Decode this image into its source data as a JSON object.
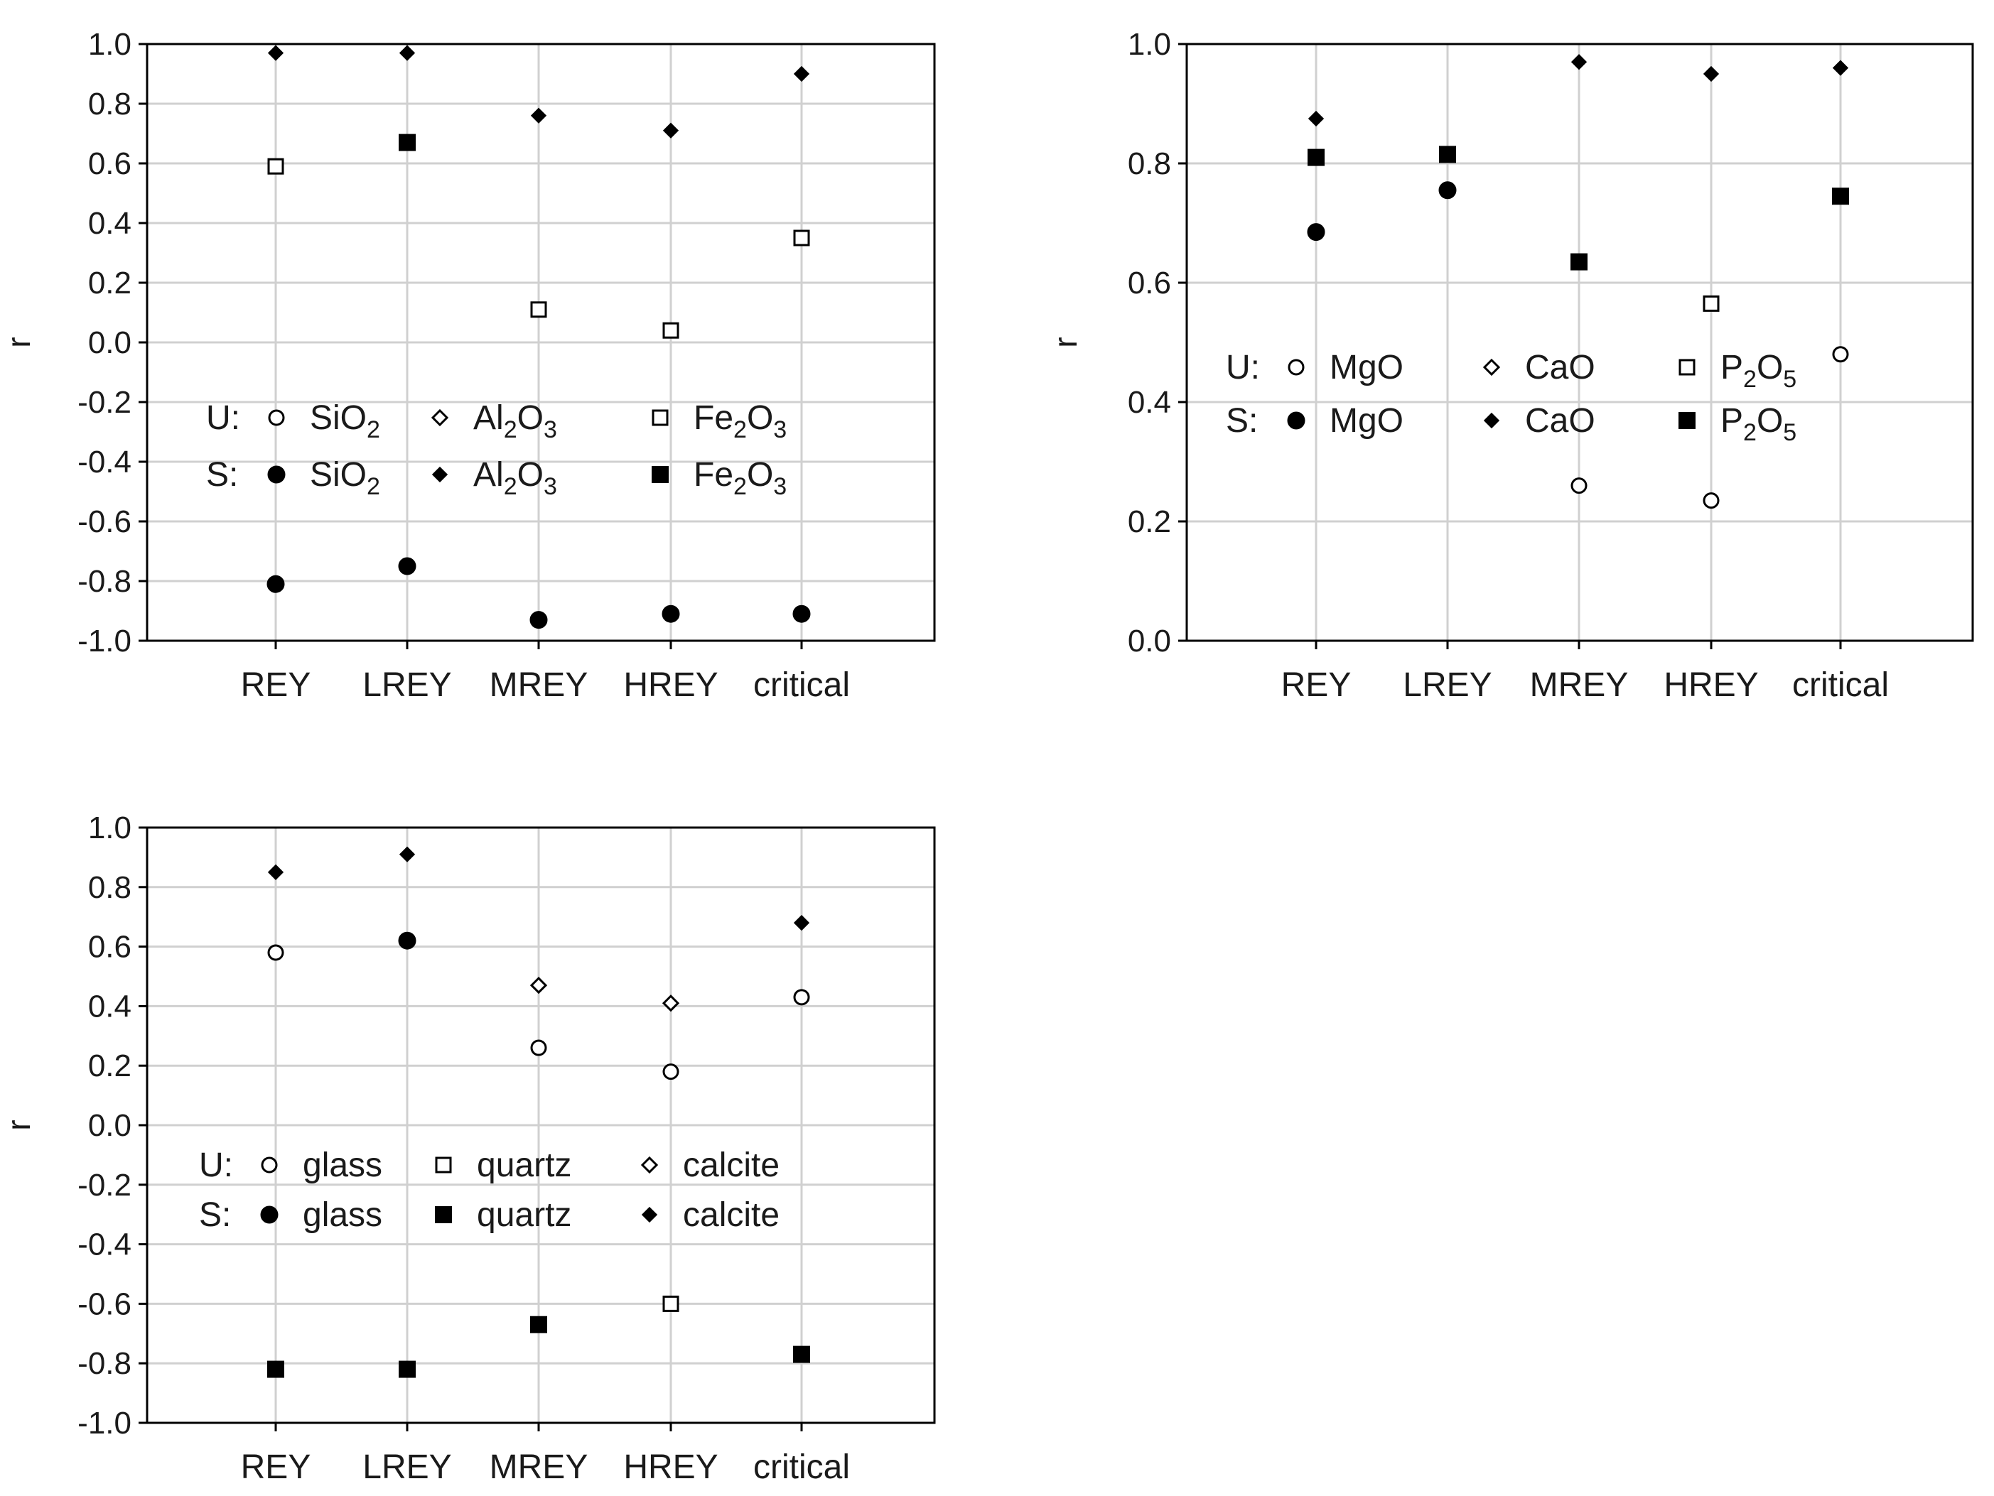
{
  "chart_data": [
    {
      "type": "scatter",
      "categories": [
        "REY",
        "LREY",
        "MREY",
        "HREY",
        "critical"
      ],
      "ylabel": "r",
      "ylim": [
        -1.0,
        1.0
      ],
      "yticks": [
        "1.0",
        "0.8",
        "0.6",
        "0.4",
        "0.2",
        "0.0",
        "-0.2",
        "-0.4",
        "-0.6",
        "-0.8",
        "-1.0"
      ],
      "ytick_values": [
        1.0,
        0.8,
        0.6,
        0.4,
        0.2,
        0.0,
        -0.2,
        -0.4,
        -0.6,
        -0.8,
        -1.0
      ],
      "grid": true,
      "legend": {
        "position": "center-left",
        "rows": [
          {
            "prefix": "U:",
            "items": [
              {
                "marker": "open-circle",
                "base": "SiO",
                "sub": "2",
                "tail": ""
              },
              {
                "marker": "open-diamond",
                "base": "Al",
                "sub": "2",
                "mid": "O",
                "sub2": "3"
              },
              {
                "marker": "open-square",
                "base": "Fe",
                "sub": "2",
                "mid": "O",
                "sub2": "3"
              }
            ]
          },
          {
            "prefix": "S:",
            "items": [
              {
                "marker": "filled-circle",
                "base": "SiO",
                "sub": "2",
                "tail": ""
              },
              {
                "marker": "filled-diamond",
                "base": "Al",
                "sub": "2",
                "mid": "O",
                "sub2": "3"
              },
              {
                "marker": "filled-square",
                "base": "Fe",
                "sub": "2",
                "mid": "O",
                "sub2": "3"
              }
            ]
          }
        ]
      },
      "points": [
        {
          "x": "REY",
          "y": 0.97,
          "marker": "filled-diamond"
        },
        {
          "x": "LREY",
          "y": 0.97,
          "marker": "filled-diamond"
        },
        {
          "x": "MREY",
          "y": 0.76,
          "marker": "filled-diamond"
        },
        {
          "x": "HREY",
          "y": 0.71,
          "marker": "filled-diamond"
        },
        {
          "x": "critical",
          "y": 0.9,
          "marker": "filled-diamond"
        },
        {
          "x": "REY",
          "y": 0.59,
          "marker": "open-square"
        },
        {
          "x": "LREY",
          "y": 0.67,
          "marker": "filled-square"
        },
        {
          "x": "MREY",
          "y": 0.11,
          "marker": "open-square"
        },
        {
          "x": "HREY",
          "y": 0.04,
          "marker": "open-square"
        },
        {
          "x": "critical",
          "y": 0.35,
          "marker": "open-square"
        },
        {
          "x": "REY",
          "y": -0.81,
          "marker": "filled-circle"
        },
        {
          "x": "LREY",
          "y": -0.75,
          "marker": "filled-circle"
        },
        {
          "x": "MREY",
          "y": -0.93,
          "marker": "filled-circle"
        },
        {
          "x": "HREY",
          "y": -0.91,
          "marker": "filled-circle"
        },
        {
          "x": "critical",
          "y": -0.91,
          "marker": "filled-circle"
        }
      ]
    },
    {
      "type": "scatter",
      "categories": [
        "REY",
        "LREY",
        "MREY",
        "HREY",
        "critical"
      ],
      "ylabel": "r",
      "ylim": [
        0.0,
        1.0
      ],
      "yticks": [
        "1.0",
        "0.8",
        "0.6",
        "0.4",
        "0.2",
        "0.0"
      ],
      "ytick_values": [
        1.0,
        0.8,
        0.6,
        0.4,
        0.2,
        0.0
      ],
      "grid": true,
      "legend": {
        "position": "center-left",
        "rows": [
          {
            "prefix": "U:",
            "items": [
              {
                "marker": "open-circle",
                "base": "MgO",
                "sub": "",
                "tail": ""
              },
              {
                "marker": "open-diamond",
                "base": "CaO",
                "sub": "",
                "tail": ""
              },
              {
                "marker": "open-square",
                "base": "P",
                "sub": "2",
                "mid": "O",
                "sub2": "5"
              }
            ]
          },
          {
            "prefix": "S:",
            "items": [
              {
                "marker": "filled-circle",
                "base": "MgO",
                "sub": "",
                "tail": ""
              },
              {
                "marker": "filled-diamond",
                "base": "CaO",
                "sub": "",
                "tail": ""
              },
              {
                "marker": "filled-square",
                "base": "P",
                "sub": "2",
                "mid": "O",
                "sub2": "5"
              }
            ]
          }
        ]
      },
      "points": [
        {
          "x": "REY",
          "y": 0.875,
          "marker": "filled-diamond"
        },
        {
          "x": "REY",
          "y": 0.81,
          "marker": "filled-square"
        },
        {
          "x": "REY",
          "y": 0.685,
          "marker": "filled-circle"
        },
        {
          "x": "LREY",
          "y": 0.815,
          "marker": "filled-square"
        },
        {
          "x": "LREY",
          "y": 0.755,
          "marker": "filled-circle"
        },
        {
          "x": "MREY",
          "y": 0.97,
          "marker": "filled-diamond"
        },
        {
          "x": "MREY",
          "y": 0.635,
          "marker": "filled-square"
        },
        {
          "x": "MREY",
          "y": 0.26,
          "marker": "open-circle"
        },
        {
          "x": "HREY",
          "y": 0.95,
          "marker": "filled-diamond"
        },
        {
          "x": "HREY",
          "y": 0.565,
          "marker": "open-square"
        },
        {
          "x": "HREY",
          "y": 0.235,
          "marker": "open-circle"
        },
        {
          "x": "critical",
          "y": 0.96,
          "marker": "filled-diamond"
        },
        {
          "x": "critical",
          "y": 0.745,
          "marker": "filled-square"
        },
        {
          "x": "critical",
          "y": 0.48,
          "marker": "open-circle"
        }
      ]
    },
    {
      "type": "scatter",
      "categories": [
        "REY",
        "LREY",
        "MREY",
        "HREY",
        "critical"
      ],
      "ylabel": "r",
      "ylim": [
        -1.0,
        1.0
      ],
      "yticks": [
        "1.0",
        "0.8",
        "0.6",
        "0.4",
        "0.2",
        "0.0",
        "-0.2",
        "-0.4",
        "-0.6",
        "-0.8",
        "-1.0"
      ],
      "ytick_values": [
        1.0,
        0.8,
        0.6,
        0.4,
        0.2,
        0.0,
        -0.2,
        -0.4,
        -0.6,
        -0.8,
        -1.0
      ],
      "grid": true,
      "legend": {
        "position": "center-left",
        "rows": [
          {
            "prefix": "U:",
            "items": [
              {
                "marker": "open-circle",
                "base": "glass",
                "sub": "",
                "tail": ""
              },
              {
                "marker": "open-square",
                "base": "quartz",
                "sub": "",
                "tail": ""
              },
              {
                "marker": "open-diamond",
                "base": "calcite",
                "sub": "",
                "tail": ""
              }
            ]
          },
          {
            "prefix": "S:",
            "items": [
              {
                "marker": "filled-circle",
                "base": "glass",
                "sub": "",
                "tail": ""
              },
              {
                "marker": "filled-square",
                "base": "quartz",
                "sub": "",
                "tail": ""
              },
              {
                "marker": "filled-diamond",
                "base": "calcite",
                "sub": "",
                "tail": ""
              }
            ]
          }
        ]
      },
      "points": [
        {
          "x": "REY",
          "y": 0.85,
          "marker": "filled-diamond"
        },
        {
          "x": "REY",
          "y": 0.58,
          "marker": "open-circle"
        },
        {
          "x": "REY",
          "y": -0.82,
          "marker": "filled-square"
        },
        {
          "x": "LREY",
          "y": 0.91,
          "marker": "filled-diamond"
        },
        {
          "x": "LREY",
          "y": 0.62,
          "marker": "filled-circle"
        },
        {
          "x": "LREY",
          "y": -0.82,
          "marker": "filled-square"
        },
        {
          "x": "MREY",
          "y": 0.47,
          "marker": "open-diamond"
        },
        {
          "x": "MREY",
          "y": 0.26,
          "marker": "open-circle"
        },
        {
          "x": "MREY",
          "y": -0.67,
          "marker": "filled-square"
        },
        {
          "x": "HREY",
          "y": 0.41,
          "marker": "open-diamond"
        },
        {
          "x": "HREY",
          "y": 0.18,
          "marker": "open-circle"
        },
        {
          "x": "HREY",
          "y": -0.6,
          "marker": "open-square"
        },
        {
          "x": "critical",
          "y": 0.68,
          "marker": "filled-diamond"
        },
        {
          "x": "critical",
          "y": 0.43,
          "marker": "open-circle"
        },
        {
          "x": "critical",
          "y": -0.77,
          "marker": "filled-square"
        }
      ]
    }
  ]
}
